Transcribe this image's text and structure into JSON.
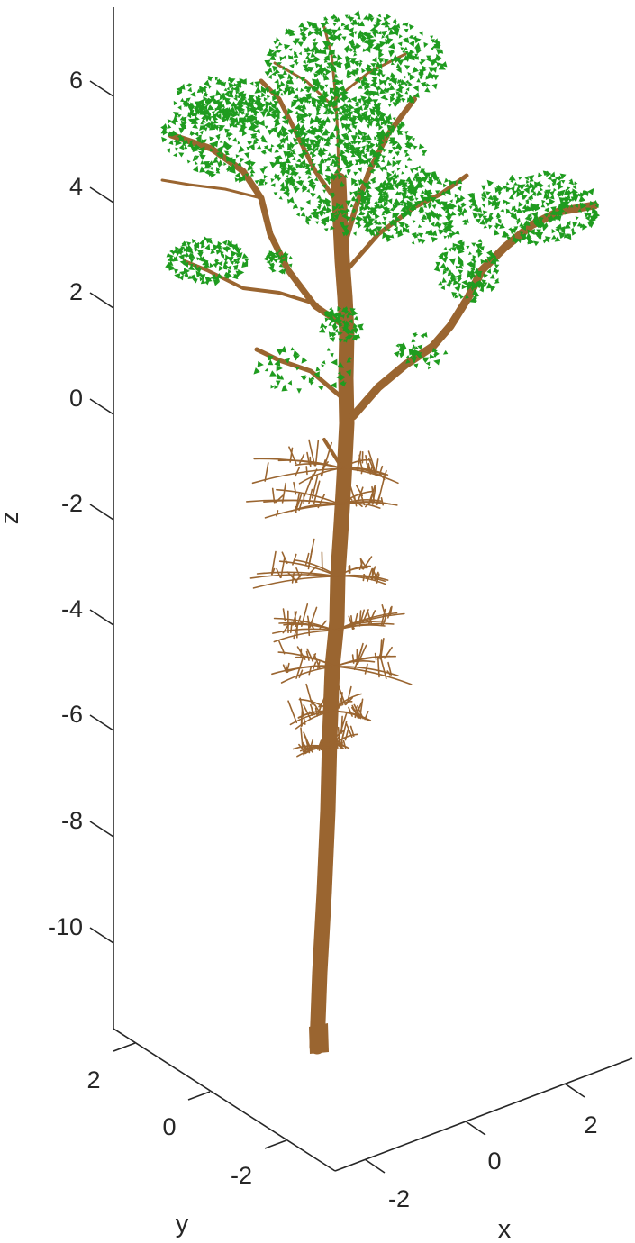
{
  "chart_data": {
    "type": "scatter",
    "title": "",
    "xlabel": "x",
    "ylabel": "y",
    "zlabel": "z",
    "x_ticks": [
      "-2",
      "0",
      "2"
    ],
    "y_ticks": [
      "2",
      "0",
      "-2"
    ],
    "z_ticks": [
      "6",
      "4",
      "2",
      "0",
      "-2",
      "-4",
      "-6",
      "-8",
      "-10"
    ],
    "grid": false,
    "legend": "none",
    "series": [],
    "colors": {
      "trunk": "#9a6530",
      "leaves": "#1f9c1f",
      "axes": "#262626",
      "background": "#ffffff"
    }
  }
}
